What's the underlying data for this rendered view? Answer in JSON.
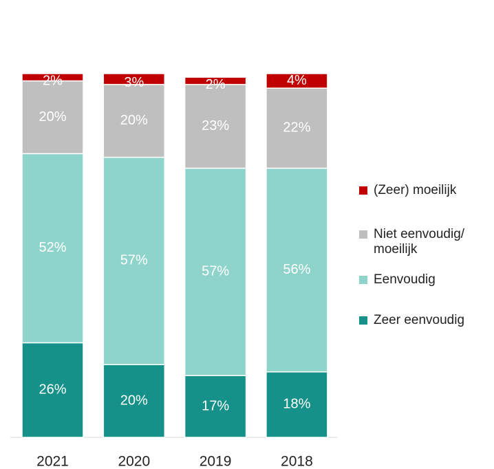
{
  "chart_data": {
    "type": "stacked_bar",
    "categories": [
      "2021",
      "2020",
      "2019",
      "2018"
    ],
    "series": [
      {
        "name": "Zeer eenvoudig",
        "color": "#15918a",
        "values": [
          26,
          20,
          17,
          18
        ]
      },
      {
        "name": "Eenvoudig",
        "color": "#8fd4ca",
        "values": [
          52,
          57,
          57,
          56
        ]
      },
      {
        "name": "Niet eenvoudig/ moeilijk",
        "color": "#bfbfbf",
        "values": [
          20,
          20,
          23,
          22
        ]
      },
      {
        "name": "(Zeer) moeilijk",
        "color": "#c00000",
        "values": [
          2,
          3,
          2,
          4
        ]
      }
    ],
    "value_labels": [
      [
        "26%",
        "20%",
        "17%",
        "18%"
      ],
      [
        "52%",
        "57%",
        "57%",
        "56%"
      ],
      [
        "20%",
        "20%",
        "23%",
        "22%"
      ],
      [
        "2%",
        "3%",
        "2%",
        "4%"
      ]
    ],
    "ylim": [
      0,
      100
    ],
    "legend": "right"
  }
}
